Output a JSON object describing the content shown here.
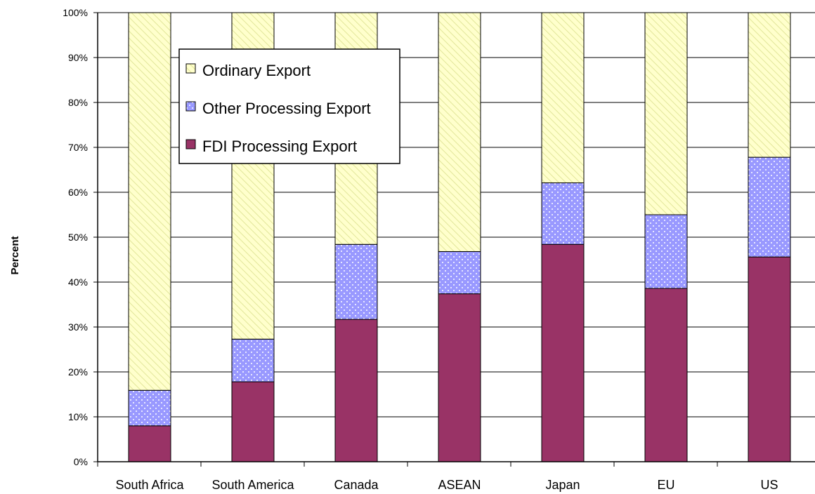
{
  "chart_data": {
    "type": "bar",
    "stacked": true,
    "percent_stacked": true,
    "categories": [
      "South Africa",
      "South America",
      "Canada",
      "ASEAN",
      "Japan",
      "EU",
      "US"
    ],
    "series": [
      {
        "name": "FDI Processing Export",
        "values": [
          8,
          17.8,
          31.7,
          37.4,
          48.4,
          38.6,
          45.6
        ],
        "color": "#993366",
        "pattern": "solid"
      },
      {
        "name": "Other Processing Export",
        "values": [
          7.9,
          9.5,
          16.7,
          9.4,
          13.7,
          16.4,
          22.2
        ],
        "color": "#9999ff",
        "pattern": "dots"
      },
      {
        "name": "Ordinary Export",
        "values": [
          84.1,
          72.7,
          51.6,
          53.2,
          37.9,
          45,
          32.2
        ],
        "color": "#ffffcc",
        "pattern": "diagonal"
      }
    ],
    "ylabel": "Percent",
    "xlabel": "",
    "title": "",
    "ylim": [
      0,
      100
    ],
    "yticks": [
      "0%",
      "10%",
      "20%",
      "30%",
      "40%",
      "50%",
      "60%",
      "70%",
      "80%",
      "90%",
      "100%"
    ],
    "grid": true,
    "legend_position": "top-left, inside plot",
    "legend_order": [
      "Ordinary Export",
      "Other Processing Export",
      "FDI Processing Export"
    ]
  }
}
